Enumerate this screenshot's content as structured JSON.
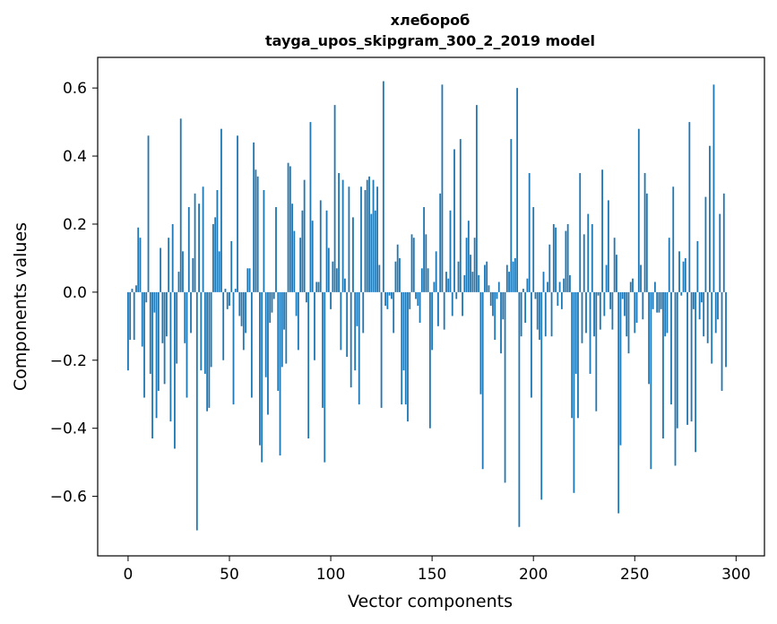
{
  "chart_data": {
    "type": "bar",
    "title": "хлебороб",
    "subtitle": "tayga_upos_skipgram_300_2_2019 model",
    "xlabel": "Vector components",
    "ylabel": "Components values",
    "xlim": [
      -15,
      314
    ],
    "ylim": [
      -0.775,
      0.69
    ],
    "xticks": [
      0,
      50,
      100,
      150,
      200,
      250,
      300
    ],
    "yticks": [
      -0.6,
      -0.4,
      -0.2,
      0.0,
      0.2,
      0.4,
      0.6
    ],
    "xtick_labels": [
      "0",
      "50",
      "100",
      "150",
      "200",
      "250",
      "300"
    ],
    "ytick_labels": [
      "−0.6",
      "−0.4",
      "−0.2",
      "0.0",
      "0.2",
      "0.4",
      "0.6"
    ],
    "bar_color": "#1f77b4",
    "grid": false,
    "values": [
      -0.23,
      -0.14,
      0.01,
      -0.14,
      0.02,
      0.19,
      0.16,
      -0.16,
      -0.31,
      -0.03,
      0.46,
      -0.24,
      -0.43,
      -0.06,
      -0.37,
      -0.29,
      0.13,
      -0.15,
      -0.27,
      -0.13,
      0.16,
      -0.38,
      0.2,
      -0.46,
      -0.21,
      0.06,
      0.51,
      0.12,
      -0.15,
      -0.31,
      0.25,
      -0.12,
      0.1,
      0.29,
      -0.7,
      0.26,
      -0.23,
      0.31,
      -0.24,
      -0.35,
      -0.34,
      -0.22,
      0.2,
      0.22,
      0.3,
      0.12,
      0.48,
      -0.2,
      0.01,
      -0.05,
      -0.04,
      0.15,
      -0.33,
      0.01,
      0.46,
      -0.07,
      -0.1,
      -0.17,
      -0.12,
      0.07,
      0.07,
      -0.31,
      0.44,
      0.36,
      0.34,
      -0.45,
      -0.5,
      0.3,
      -0.25,
      -0.36,
      -0.09,
      -0.06,
      -0.02,
      0.25,
      -0.29,
      -0.48,
      -0.22,
      -0.11,
      -0.21,
      0.38,
      0.37,
      0.26,
      0.18,
      -0.07,
      -0.17,
      0.16,
      0.24,
      0.33,
      -0.03,
      -0.43,
      0.5,
      0.21,
      -0.2,
      0.03,
      0.03,
      0.27,
      -0.34,
      -0.5,
      0.24,
      0.13,
      -0.05,
      0.09,
      0.55,
      0.07,
      0.35,
      -0.17,
      0.33,
      0.04,
      -0.19,
      0.31,
      -0.28,
      0.22,
      -0.23,
      -0.1,
      -0.33,
      0.31,
      -0.12,
      0.3,
      0.33,
      0.34,
      0.23,
      0.33,
      0.24,
      0.31,
      0.08,
      -0.34,
      0.62,
      -0.04,
      -0.05,
      -0.01,
      -0.02,
      -0.12,
      0.09,
      0.14,
      0.1,
      -0.33,
      -0.23,
      -0.33,
      -0.38,
      -0.05,
      0.17,
      0.16,
      -0.02,
      -0.04,
      -0.09,
      0.07,
      0.25,
      0.17,
      0.07,
      -0.4,
      -0.17,
      0.03,
      0.12,
      -0.1,
      0.29,
      0.61,
      -0.11,
      0.06,
      0.04,
      0.24,
      -0.07,
      0.42,
      -0.02,
      0.09,
      0.45,
      -0.07,
      0.05,
      0.16,
      0.21,
      0.11,
      0.06,
      0.16,
      0.55,
      0.05,
      -0.3,
      -0.52,
      0.08,
      0.09,
      0.02,
      -0.04,
      -0.07,
      -0.14,
      -0.02,
      0.03,
      -0.18,
      -0.08,
      -0.56,
      0.08,
      0.06,
      0.45,
      0.09,
      0.1,
      0.6,
      -0.69,
      -0.13,
      0.01,
      -0.09,
      0.04,
      0.35,
      -0.31,
      0.25,
      -0.02,
      -0.11,
      -0.14,
      -0.61,
      0.06,
      -0.13,
      0.03,
      0.14,
      -0.13,
      0.2,
      0.19,
      -0.04,
      0.03,
      -0.05,
      0.04,
      0.18,
      0.2,
      0.05,
      -0.37,
      -0.59,
      -0.24,
      -0.37,
      0.35,
      -0.15,
      0.17,
      -0.12,
      0.23,
      -0.24,
      0.2,
      -0.13,
      -0.35,
      -0.01,
      -0.11,
      0.36,
      -0.07,
      0.08,
      0.27,
      -0.05,
      -0.11,
      0.16,
      0.11,
      -0.65,
      -0.45,
      -0.02,
      -0.07,
      -0.13,
      -0.18,
      0.03,
      0.04,
      -0.12,
      -0.09,
      0.48,
      0.08,
      -0.08,
      0.35,
      0.29,
      -0.27,
      -0.52,
      -0.05,
      0.03,
      -0.06,
      -0.06,
      -0.05,
      -0.43,
      -0.13,
      -0.12,
      0.16,
      -0.33,
      0.31,
      -0.51,
      -0.4,
      0.12,
      -0.01,
      0.09,
      0.1,
      -0.39,
      0.5,
      -0.38,
      -0.05,
      -0.47,
      0.15,
      -0.08,
      -0.03,
      -0.13,
      0.28,
      -0.15,
      0.43,
      -0.21,
      0.61,
      -0.12,
      -0.08,
      0.23,
      -0.29,
      0.29,
      -0.22
    ]
  }
}
